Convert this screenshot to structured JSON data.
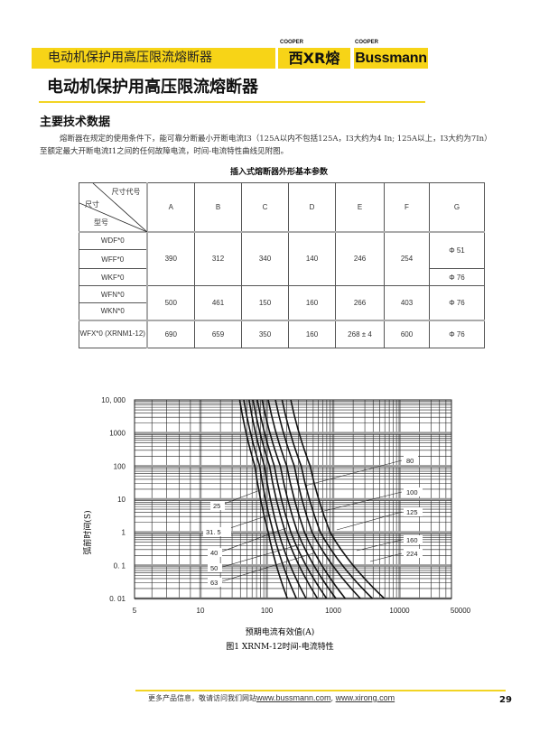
{
  "header": {
    "bar_title": "电动机保护用高压限流熔断器",
    "logo_xirong": "西XR熔",
    "logo_xirong_brand": "COOPER",
    "logo_bussmann": "Bussmann",
    "logo_bussmann_brand": "COOPER",
    "accent_color": "#f7d417"
  },
  "title": "电动机保护用高压限流熔断器",
  "section": {
    "heading": "主要技术数据",
    "para_line1": "熔断器在规定的使用条件下，能可靠分断最小开断电流I3（125A以内不包括125A，I3大约为4 In; 125A以上，I3大约为7In）",
    "para_line2": "至额定最大开断电流I1之间的任何故障电流，时间-电流特性曲线见附图。"
  },
  "table": {
    "caption": "插入式熔断器外形基本参数",
    "corner": {
      "top": "尺寸代号",
      "mid": "尺寸",
      "bottom": "型号"
    },
    "columns": [
      "A",
      "B",
      "C",
      "D",
      "E",
      "F",
      "G"
    ],
    "groups": [
      {
        "models": [
          "WDF*0",
          "WFF*0",
          "WKF*0"
        ],
        "values": [
          "390",
          "312",
          "340",
          "140",
          "246",
          "254"
        ],
        "g": [
          "Φ 51",
          "Φ 76"
        ]
      },
      {
        "models": [
          "WFN*0",
          "WKN*0"
        ],
        "values": [
          "500",
          "461",
          "150",
          "160",
          "266",
          "403"
        ],
        "g": [
          "Φ 76"
        ]
      },
      {
        "models": [
          "WFX*0 (XRNM1-12)"
        ],
        "values": [
          "690",
          "659",
          "350",
          "160",
          "268 ± 4",
          "600"
        ],
        "g": [
          "Φ 76"
        ]
      }
    ]
  },
  "chart_data": {
    "type": "line",
    "title": "",
    "xlabel": "预期电流有效值(A)",
    "ylabel": "弧前时间(S)",
    "x_scale": "log",
    "y_scale": "log",
    "xlim": [
      5,
      50000
    ],
    "ylim": [
      0.01,
      10000
    ],
    "x_ticks": [
      "5",
      "10",
      "100",
      "1000",
      "10000",
      "50000"
    ],
    "y_ticks": [
      "10, 000",
      "1000",
      "100",
      "10",
      "1",
      "0. 1",
      "0. 01"
    ],
    "grid": true,
    "t_points": [
      10000,
      100,
      1,
      0.01
    ],
    "series": [
      {
        "name": "25",
        "currents": [
          39,
          66,
          105,
          204
        ]
      },
      {
        "name": "31. 5",
        "currents": [
          45,
          78,
          125,
          279
        ]
      },
      {
        "name": "40",
        "currents": [
          54,
          92,
          150,
          390
        ]
      },
      {
        "name": "50",
        "currents": [
          62,
          110,
          190,
          580
        ]
      },
      {
        "name": "63",
        "currents": [
          72,
          130,
          230,
          795
        ]
      },
      {
        "name": "80",
        "currents": [
          85,
          160,
          290,
          1100
        ]
      },
      {
        "name": "100",
        "currents": [
          105,
          200,
          370,
          1520
        ]
      },
      {
        "name": "125",
        "currents": [
          135,
          260,
          480,
          2570
        ]
      },
      {
        "name": "160",
        "currents": [
          170,
          330,
          640,
          3900
        ]
      },
      {
        "name": "224",
        "currents": [
          230,
          450,
          900,
          5900
        ]
      }
    ],
    "figure_caption": "图1 XRNM-12时间-电流特性"
  },
  "footer": {
    "text": "更多产品信息，敬请访问我们网站",
    "link1": "www.bussmann.com",
    "sep": ", ",
    "link2": "www.xirong.com",
    "page": "29"
  }
}
